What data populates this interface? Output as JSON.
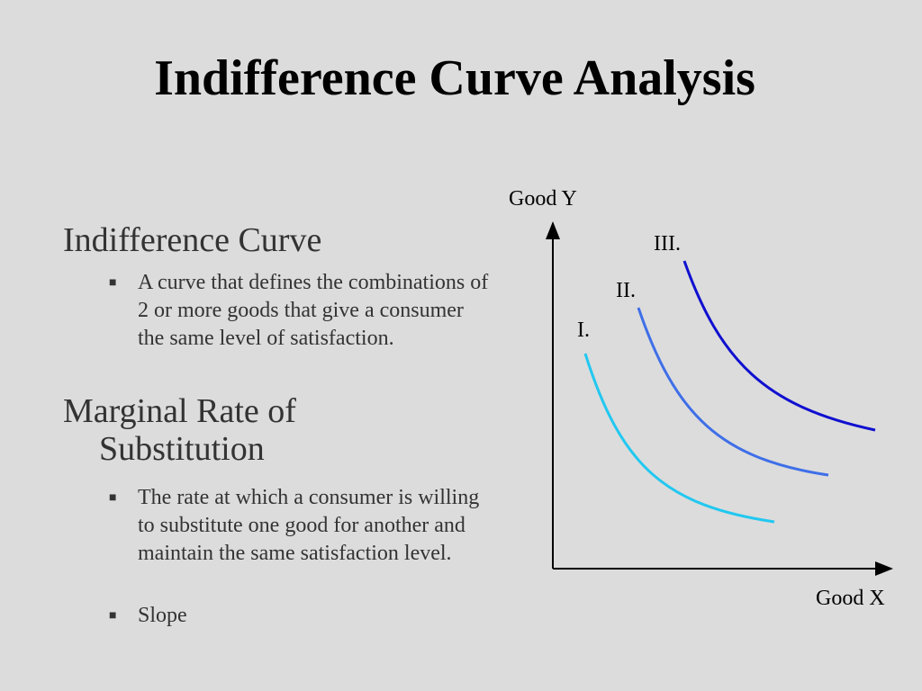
{
  "title": "Indifference Curve Analysis",
  "sections": [
    {
      "heading": "Indifference Curve",
      "bullets": [
        "A curve that defines the combinations of 2 or more goods that give a consumer the same level of satisfaction."
      ]
    },
    {
      "heading": "Marginal Rate of Substitution",
      "bullets": [
        "The rate at which a consumer is willing to substitute one good for another and maintain the same satisfaction level.",
        "Slope"
      ]
    }
  ],
  "diagram": {
    "y_axis_label": "Good Y",
    "x_axis_label": "Good X",
    "curve_labels": [
      "I.",
      "II.",
      "III."
    ]
  }
}
